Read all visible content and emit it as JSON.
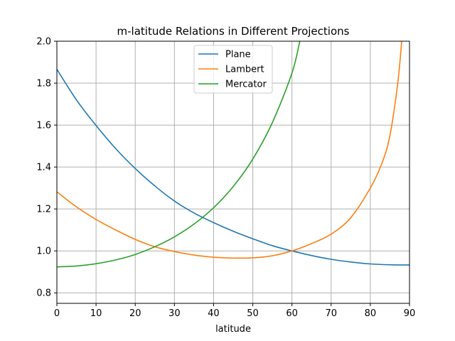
{
  "chart_data": {
    "type": "line",
    "title": "m-latitude Relations in Different Projections",
    "xlabel": "latitude",
    "ylabel": "",
    "xlim": [
      0,
      90
    ],
    "ylim": [
      0.75,
      2.0
    ],
    "xticks": [
      "0",
      "10",
      "20",
      "30",
      "40",
      "50",
      "60",
      "70",
      "80",
      "90"
    ],
    "yticks": [
      "0.8",
      "1.0",
      "1.2",
      "1.4",
      "1.6",
      "1.8",
      "2.0"
    ],
    "grid": true,
    "legend_position": "top-center",
    "series": [
      {
        "name": "Plane",
        "color": "#1f77b4",
        "x": [
          0,
          5,
          10,
          15,
          20,
          25,
          30,
          35,
          40,
          45,
          50,
          55,
          60,
          65,
          70,
          75,
          80,
          85,
          90
        ],
        "y": [
          1.866,
          1.72,
          1.598,
          1.488,
          1.393,
          1.31,
          1.238,
          1.181,
          1.135,
          1.094,
          1.058,
          1.025,
          1.0,
          0.978,
          0.96,
          0.947,
          0.938,
          0.934,
          0.933
        ]
      },
      {
        "name": "Lambert",
        "color": "#ff7f0e",
        "x": [
          0,
          5,
          10,
          15,
          20,
          25,
          30,
          35,
          40,
          45,
          50,
          55,
          60,
          65,
          70,
          75,
          80,
          83,
          85,
          87,
          88
        ],
        "y": [
          1.282,
          1.21,
          1.15,
          1.1,
          1.055,
          1.02,
          0.997,
          0.98,
          0.97,
          0.966,
          0.967,
          0.977,
          1.0,
          1.035,
          1.08,
          1.158,
          1.3,
          1.42,
          1.55,
          1.8,
          2.0
        ]
      },
      {
        "name": "Mercator",
        "color": "#2ca02c",
        "x": [
          0,
          5,
          10,
          15,
          20,
          25,
          30,
          35,
          40,
          45,
          50,
          55,
          60,
          62
        ],
        "y": [
          0.924,
          0.928,
          0.939,
          0.957,
          0.983,
          1.02,
          1.067,
          1.128,
          1.206,
          1.307,
          1.438,
          1.612,
          1.848,
          2.0
        ]
      }
    ]
  }
}
